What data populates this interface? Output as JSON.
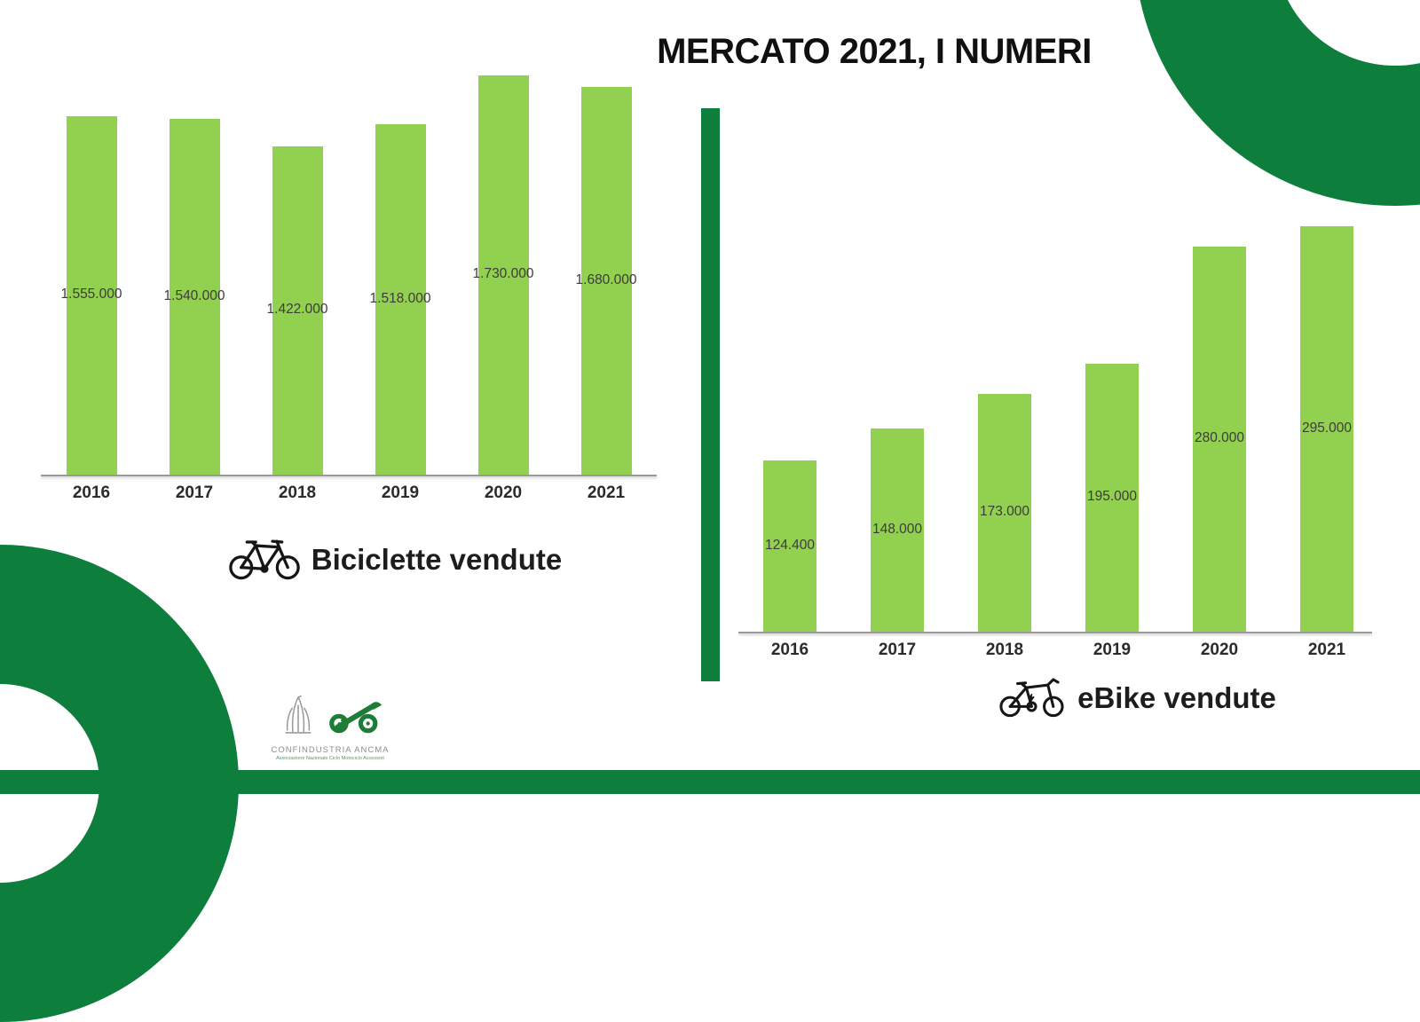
{
  "title": "MERCATO 2021, I NUMERI",
  "colors": {
    "bar_fill": "#92d04f",
    "dark_green": "#0d7e3c",
    "axis_line": "#9a9a9a",
    "value_label_text": "#3c3c3c",
    "year_label_text": "#2b2b2b",
    "title_text": "#101010"
  },
  "chart_data": [
    {
      "type": "bar",
      "name": "biciclette-vendute",
      "caption": "Biciclette vendute",
      "categories": [
        "2016",
        "2017",
        "2018",
        "2019",
        "2020",
        "2021"
      ],
      "values": [
        1555000,
        1540000,
        1422000,
        1518000,
        1730000,
        1680000
      ],
      "data_labels": [
        "1.555.000",
        "1.540.000",
        "1.422.000",
        "1.518.000",
        "1.730.000",
        "1.680.000"
      ],
      "ylim": [
        0,
        1730000
      ],
      "grid": false,
      "legend": "none",
      "data_label_position": "middle-of-bar"
    },
    {
      "type": "bar",
      "name": "ebike-vendute",
      "caption": "eBike vendute",
      "categories": [
        "2016",
        "2017",
        "2018",
        "2019",
        "2020",
        "2021"
      ],
      "values": [
        124400,
        148000,
        173000,
        195000,
        280000,
        295000
      ],
      "data_labels": [
        "124.400",
        "148.000",
        "173.000",
        "195.000",
        "280.000",
        "295.000"
      ],
      "ylim": [
        0,
        295000
      ],
      "grid": false,
      "legend": "none",
      "data_label_position": "middle-of-bar"
    }
  ],
  "footer": {
    "org_name": "CONFINDUSTRIA  ANCMA",
    "org_tagline": "Associazione Nazionale Ciclo Motociclo Accessori"
  }
}
